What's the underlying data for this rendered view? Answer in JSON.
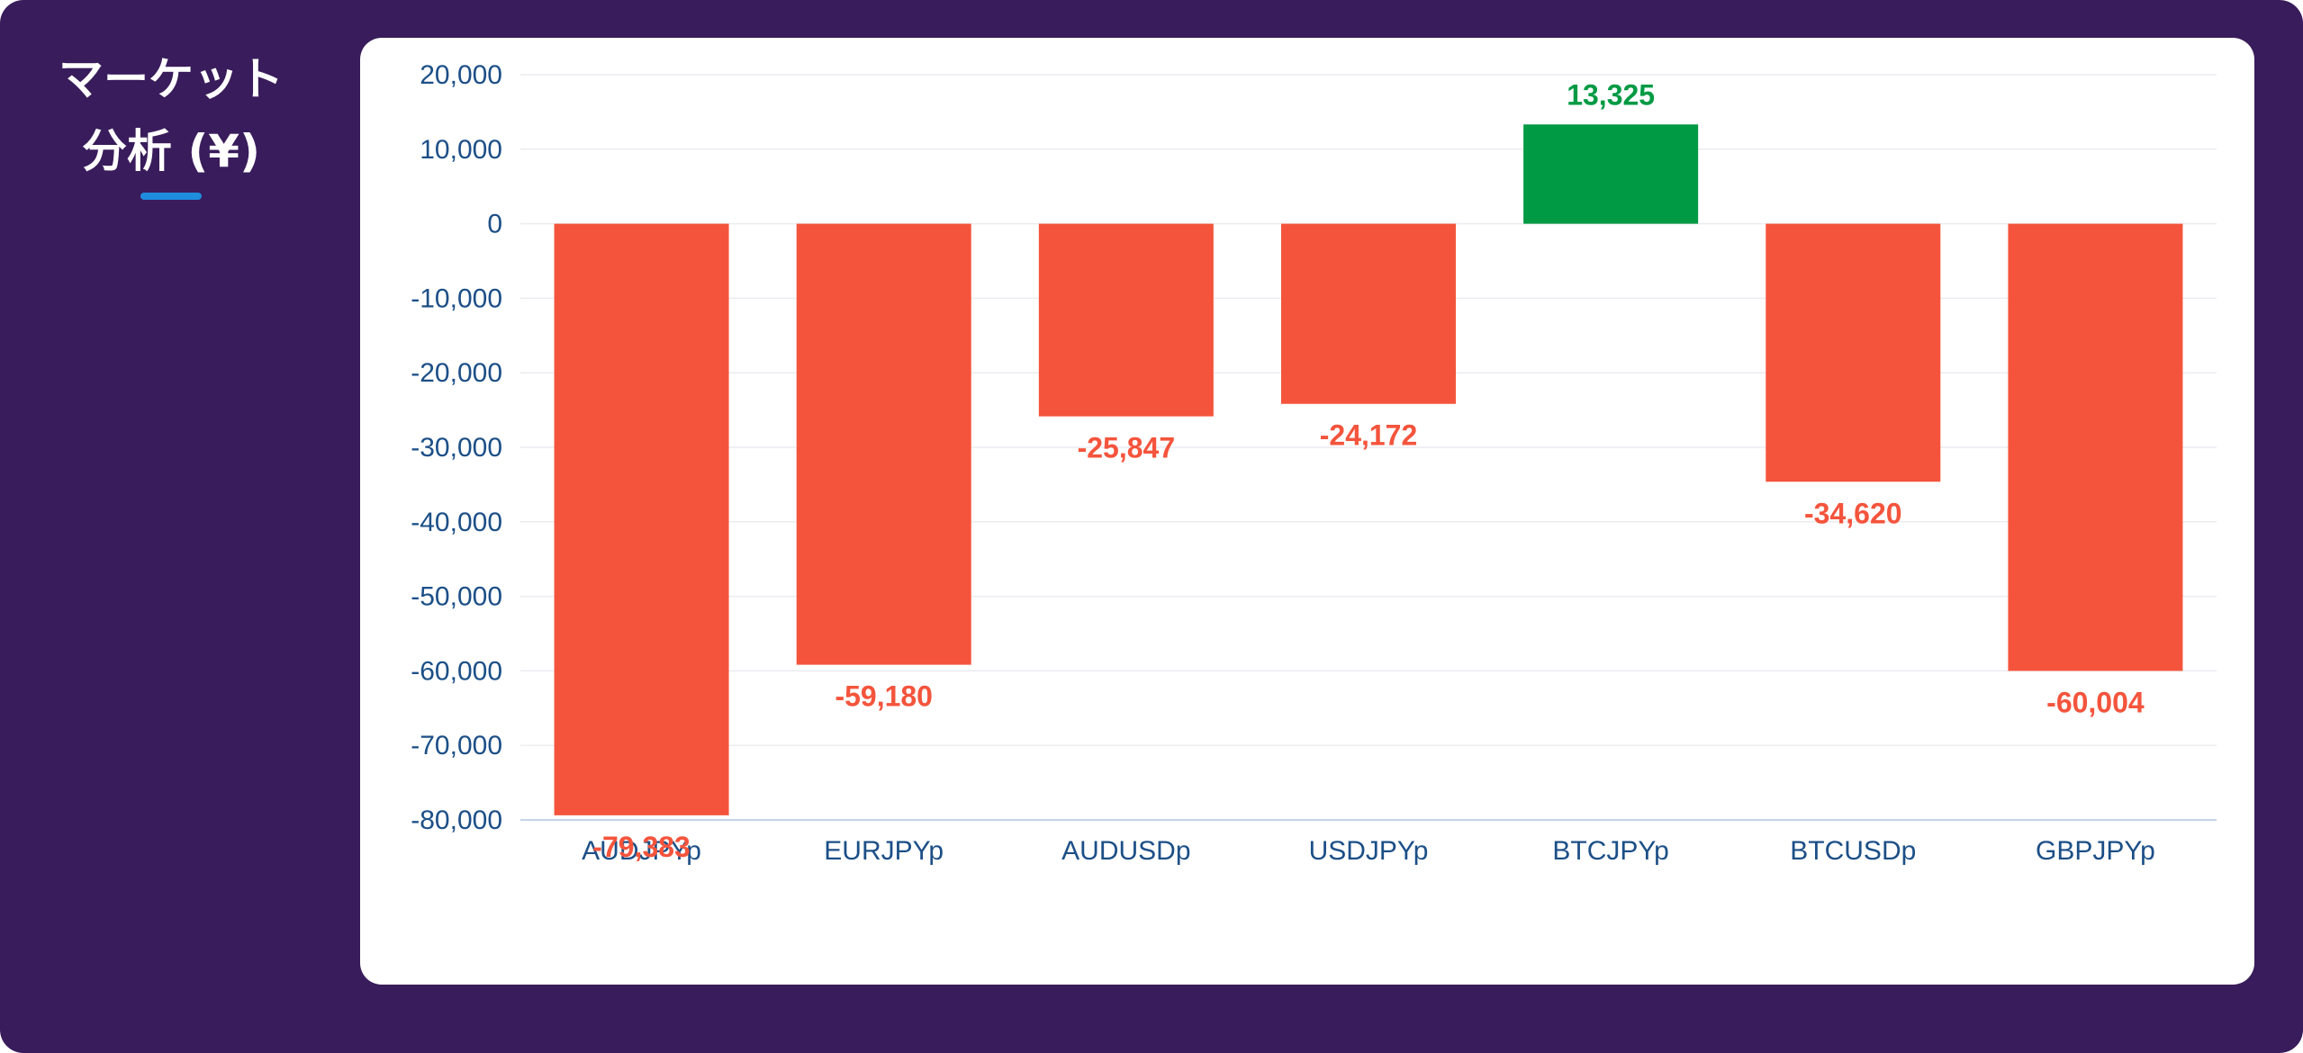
{
  "title": "マーケット\n分析 (¥)",
  "colors": {
    "background": "#391c5b",
    "panel": "#ffffff",
    "negative": "#f4543c",
    "positive": "#009a44",
    "tick_text": "#1c4f87",
    "grid": "#ececf0",
    "underline": "#1f8ddd"
  },
  "chart_data": {
    "type": "bar",
    "categories": [
      "AUDJPYp",
      "EURJPYp",
      "AUDUSDp",
      "USDJPYp",
      "BTCJPYp",
      "BTCUSDp",
      "GBPJPYp"
    ],
    "values": [
      -79383,
      -59180,
      -25847,
      -24172,
      13325,
      -34620,
      -60004
    ],
    "data_labels": [
      "-79,383",
      "-59,180",
      "-25,847",
      "-24,172",
      "13,325",
      "-34,620",
      "-60,004"
    ],
    "y_ticks": [
      20000,
      10000,
      0,
      -10000,
      -20000,
      -30000,
      -40000,
      -50000,
      -60000,
      -70000,
      -80000
    ],
    "y_tick_labels": [
      "20,000",
      "10,000",
      "0",
      "-10,000",
      "-20,000",
      "-30,000",
      "-40,000",
      "-50,000",
      "-60,000",
      "-70,000",
      "-80,000"
    ],
    "ylim": [
      -80000,
      20000
    ],
    "grid": true,
    "legend": "none"
  }
}
